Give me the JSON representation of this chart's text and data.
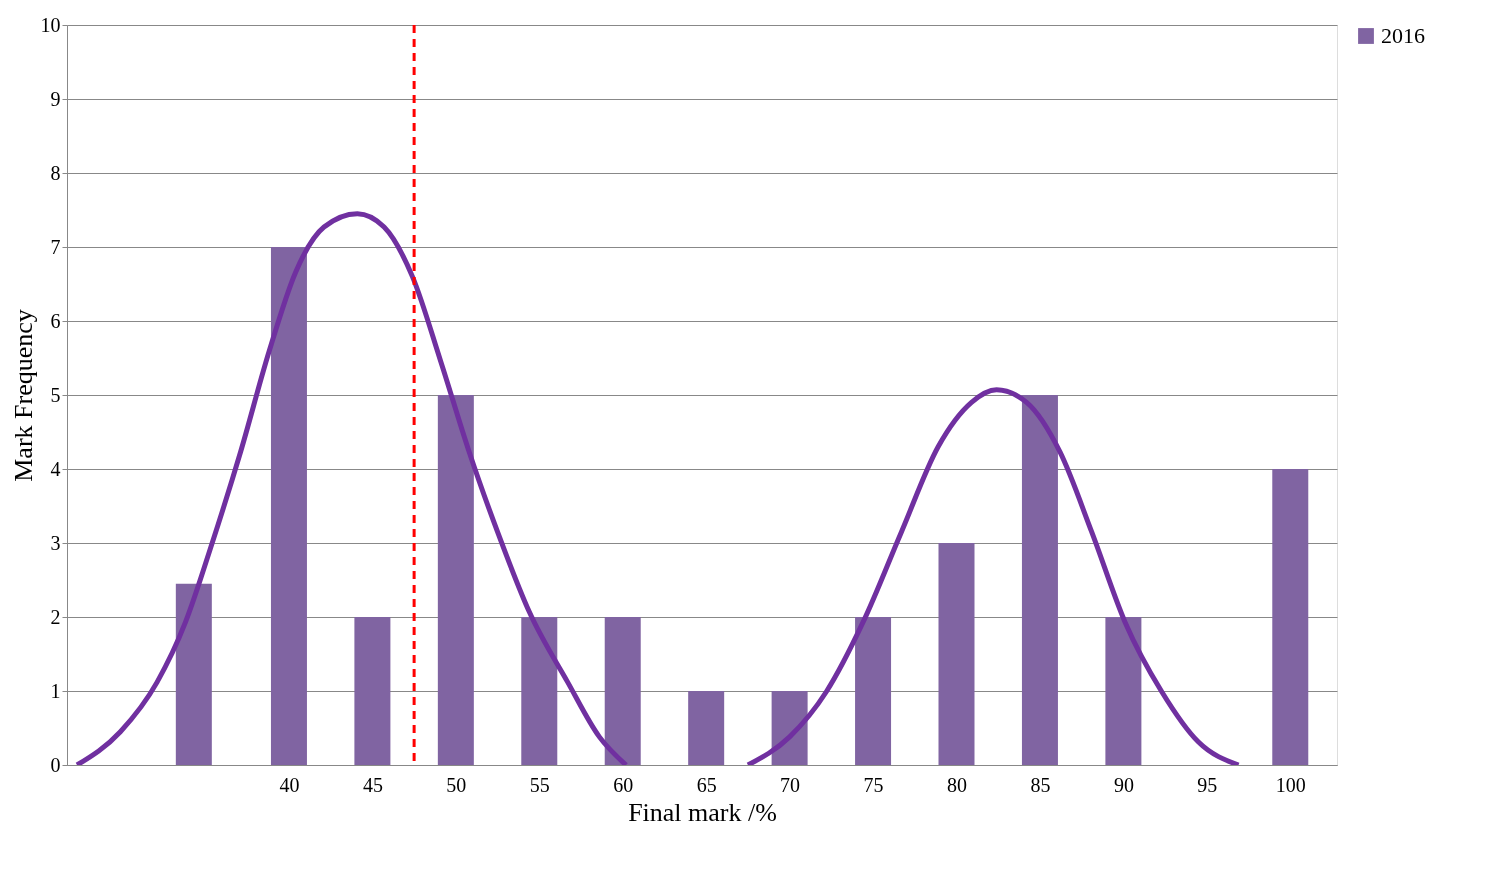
{
  "chart_data": {
    "type": "bar",
    "xlabel": "Final mark /%",
    "ylabel": "Mark Frequency",
    "xlim": [
      27,
      102.5
    ],
    "ylim": [
      0,
      10
    ],
    "yticks": [
      0,
      1,
      2,
      3,
      4,
      5,
      6,
      7,
      8,
      9,
      10
    ],
    "xticks": [
      40,
      45,
      50,
      55,
      60,
      65,
      70,
      75,
      80,
      85,
      90,
      95,
      100
    ],
    "grid": "y",
    "legend": "right",
    "series": [
      {
        "name": "2016",
        "color": "#8064a2",
        "x": [
          34.3,
          40,
          45,
          50,
          55,
          60,
          65,
          70,
          75,
          80,
          85,
          90,
          95,
          100
        ],
        "values": [
          2.45,
          7,
          2,
          5,
          2,
          2,
          1,
          1,
          2,
          3,
          5,
          2,
          0,
          4
        ]
      },
      {
        "type": "line",
        "color": "#7030a0",
        "line_style": "solid",
        "x": [
          27.3,
          29.9,
          32.1,
          33.8,
          35.4,
          37.1,
          38.8,
          40.4,
          42.1,
          44.1,
          45.7,
          47.4,
          49.1,
          50.8,
          52.5,
          54.4,
          56.7,
          58.6,
          60.2
        ],
        "values": [
          0,
          0.45,
          1.12,
          1.93,
          3.0,
          4.23,
          5.58,
          6.66,
          7.27,
          7.45,
          7.27,
          6.6,
          5.45,
          4.23,
          3.15,
          2.07,
          1.12,
          0.38,
          0
        ]
      },
      {
        "type": "line",
        "color": "#7030a0",
        "line_style": "solid",
        "x": [
          67.5,
          70.0,
          72.2,
          74.4,
          76.7,
          78.9,
          80.9,
          82.4,
          84.2,
          86.2,
          88.1,
          90.1,
          92.3,
          94.5,
          96.9
        ],
        "values": [
          0,
          0.38,
          0.99,
          1.93,
          3.15,
          4.3,
          4.9,
          5.07,
          4.9,
          4.23,
          3.15,
          1.93,
          0.99,
          0.31,
          0
        ]
      }
    ],
    "ref_lines": [
      {
        "axis": "x",
        "value": 47.5,
        "color": "#ff0000",
        "line_style": "dashed"
      }
    ]
  }
}
